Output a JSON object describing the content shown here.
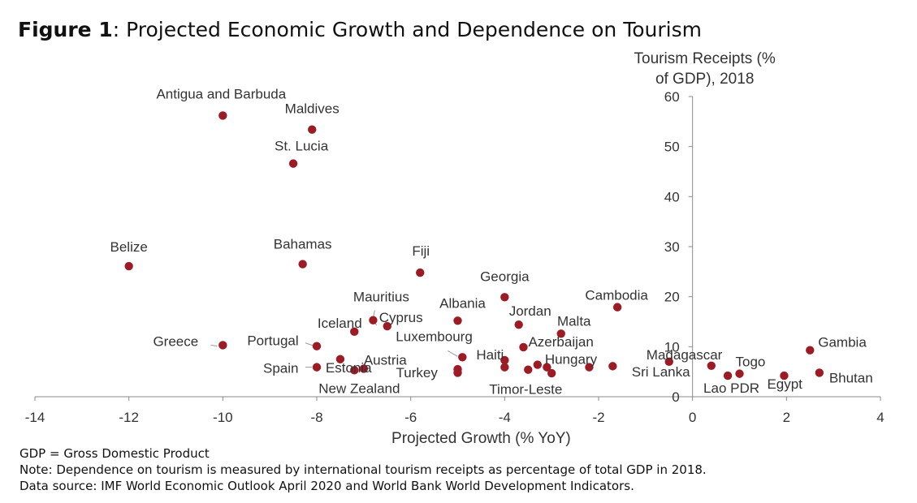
{
  "figure": {
    "label": "Figure 1",
    "separator": ":",
    "title": " Projected Economic Growth and Dependence on Tourism"
  },
  "notes": [
    "GDP = Gross Domestic Product",
    "Note: Dependence on tourism is measured by international tourism receipts as percentage of total GDP in 2018.",
    "Data source: IMF World Economic Outlook April 2020 and World Bank World Development Indicators."
  ],
  "chart_data": {
    "type": "scatter",
    "xlabel": "Projected Growth (% YoY)",
    "ylabel": "Tourism Receipts (% of GDP), 2018",
    "ylabel_lines": [
      "Tourism Receipts (%",
      "of GDP), 2018"
    ],
    "xlim": [
      -14,
      4
    ],
    "ylim": [
      0,
      60
    ],
    "xticks": [
      -14,
      -12,
      -10,
      -8,
      -6,
      -4,
      -2,
      0,
      2,
      4
    ],
    "yticks": [
      0,
      10,
      20,
      30,
      40,
      50,
      60
    ],
    "grid": false,
    "marker_color": "#9b1c24",
    "points": [
      {
        "label": "Antigua and Barbuda",
        "x": -10.0,
        "y": 56.2
      },
      {
        "label": "Maldives",
        "x": -8.1,
        "y": 53.4
      },
      {
        "label": "St. Lucia",
        "x": -8.5,
        "y": 46.6
      },
      {
        "label": "Belize",
        "x": -12.0,
        "y": 26.1
      },
      {
        "label": "Bahamas",
        "x": -8.3,
        "y": 26.5
      },
      {
        "label": "Fiji",
        "x": -5.8,
        "y": 24.8
      },
      {
        "label": "Georgia",
        "x": -4.0,
        "y": 19.9
      },
      {
        "label": "Cambodia",
        "x": -1.6,
        "y": 17.9
      },
      {
        "label": "Mauritius",
        "x": -6.8,
        "y": 15.3
      },
      {
        "label": "Cyprus",
        "x": -6.5,
        "y": 14.1
      },
      {
        "label": "Albania",
        "x": -5.0,
        "y": 15.2
      },
      {
        "label": "Jordan",
        "x": -3.7,
        "y": 14.4
      },
      {
        "label": "Iceland",
        "x": -7.2,
        "y": 13.0
      },
      {
        "label": "Malta",
        "x": -2.8,
        "y": 12.6
      },
      {
        "label": "Greece",
        "x": -10.0,
        "y": 10.3
      },
      {
        "label": "Portugal",
        "x": -8.0,
        "y": 10.1
      },
      {
        "label": "Azerbaijan",
        "x": -3.6,
        "y": 9.9
      },
      {
        "label": "Estonia",
        "x": -7.5,
        "y": 7.5
      },
      {
        "label": "Luxembourg",
        "x": -4.9,
        "y": 7.9
      },
      {
        "label": "Haiti",
        "x": -4.0,
        "y": 7.3
      },
      {
        "label": "Hungary",
        "x": -3.3,
        "y": 6.4
      },
      {
        "label": "Austria",
        "x": -7.0,
        "y": 5.6
      },
      {
        "label": "Spain",
        "x": -8.0,
        "y": 5.9
      },
      {
        "label": "New Zealand",
        "x": -7.2,
        "y": 5.3
      },
      {
        "label": "Turkey",
        "x": -5.0,
        "y": 5.5
      },
      {
        "label": "",
        "x": -5.0,
        "y": 4.8
      },
      {
        "label": "",
        "x": -4.0,
        "y": 5.9
      },
      {
        "label": "Timor-Leste",
        "x": -3.5,
        "y": 5.4
      },
      {
        "label": "",
        "x": -3.0,
        "y": 4.7
      },
      {
        "label": "",
        "x": -3.1,
        "y": 5.9
      },
      {
        "label": "",
        "x": -2.2,
        "y": 5.9
      },
      {
        "label": "",
        "x": -1.7,
        "y": 6.1
      },
      {
        "label": "Sri Lanka",
        "x": -0.5,
        "y": 7.0
      },
      {
        "label": "Madagascar",
        "x": 0.4,
        "y": 6.2
      },
      {
        "label": "Lao PDR",
        "x": 0.75,
        "y": 4.2
      },
      {
        "label": "Togo",
        "x": 1.0,
        "y": 4.6
      },
      {
        "label": "Egypt",
        "x": 1.95,
        "y": 4.2
      },
      {
        "label": "Gambia",
        "x": 2.5,
        "y": 9.3
      },
      {
        "label": "Bhutan",
        "x": 2.7,
        "y": 4.8
      }
    ]
  }
}
